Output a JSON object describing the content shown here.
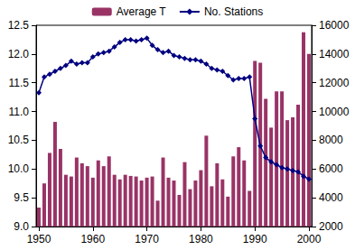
{
  "chart_data": {
    "type": "bar",
    "x": [
      1950,
      1951,
      1952,
      1953,
      1954,
      1955,
      1956,
      1957,
      1958,
      1959,
      1960,
      1961,
      1962,
      1963,
      1964,
      1965,
      1966,
      1967,
      1968,
      1969,
      1970,
      1971,
      1972,
      1973,
      1974,
      1975,
      1976,
      1977,
      1978,
      1979,
      1980,
      1981,
      1982,
      1983,
      1984,
      1985,
      1986,
      1987,
      1988,
      1989,
      1990,
      1991,
      1992,
      1993,
      1994,
      1995,
      1996,
      1997,
      1998,
      1999,
      2000
    ],
    "series": [
      {
        "name": "Average T",
        "type": "bar",
        "color": "#993366",
        "values": [
          9.33,
          9.75,
          10.28,
          10.82,
          10.35,
          9.9,
          9.87,
          10.2,
          10.1,
          10.05,
          9.85,
          10.15,
          10.05,
          10.22,
          9.9,
          9.82,
          9.9,
          9.88,
          9.87,
          9.8,
          9.85,
          9.87,
          9.45,
          10.2,
          9.85,
          9.8,
          9.55,
          10.12,
          9.65,
          9.8,
          9.98,
          10.58,
          9.7,
          10.1,
          9.82,
          9.52,
          10.22,
          10.38,
          10.15,
          9.62,
          11.88,
          11.85,
          11.22,
          10.72,
          11.35,
          11.35,
          10.85,
          10.9,
          11.12,
          12.38,
          12.0
        ]
      },
      {
        "name": "No. Stations",
        "type": "line",
        "axis": "y2",
        "color": "#000080",
        "marker": "diamond",
        "values": [
          11300,
          12400,
          12600,
          12800,
          13000,
          13200,
          13500,
          13300,
          13400,
          13400,
          13800,
          14000,
          14100,
          14200,
          14500,
          14800,
          15000,
          15000,
          14900,
          15000,
          15100,
          14600,
          14300,
          14100,
          14200,
          13900,
          13800,
          13700,
          13600,
          13600,
          13500,
          13300,
          13000,
          12900,
          12800,
          12500,
          12200,
          12300,
          12300,
          12400,
          9500,
          7600,
          6800,
          6500,
          6300,
          6100,
          6000,
          5900,
          5800,
          5500,
          5300
        ]
      }
    ],
    "xlim": [
      1949.5,
      2000.5
    ],
    "xticks": [
      1950,
      1960,
      1970,
      1980,
      1990,
      2000
    ],
    "ylim": [
      9.0,
      12.5
    ],
    "yticks": [
      {
        "value": 9.0,
        "label": "9.0"
      },
      9.5,
      {
        "value": 10.0,
        "label": "10.0"
      },
      10.5,
      {
        "value": 11.0,
        "label": "11.0"
      },
      11.5,
      {
        "value": 12.0,
        "label": "12.0"
      },
      12.5
    ],
    "y2lim": [
      2000,
      16000
    ],
    "y2ticks": [
      2000,
      4000,
      6000,
      8000,
      10000,
      12000,
      14000,
      16000
    ],
    "legend": "top",
    "grid": false
  }
}
